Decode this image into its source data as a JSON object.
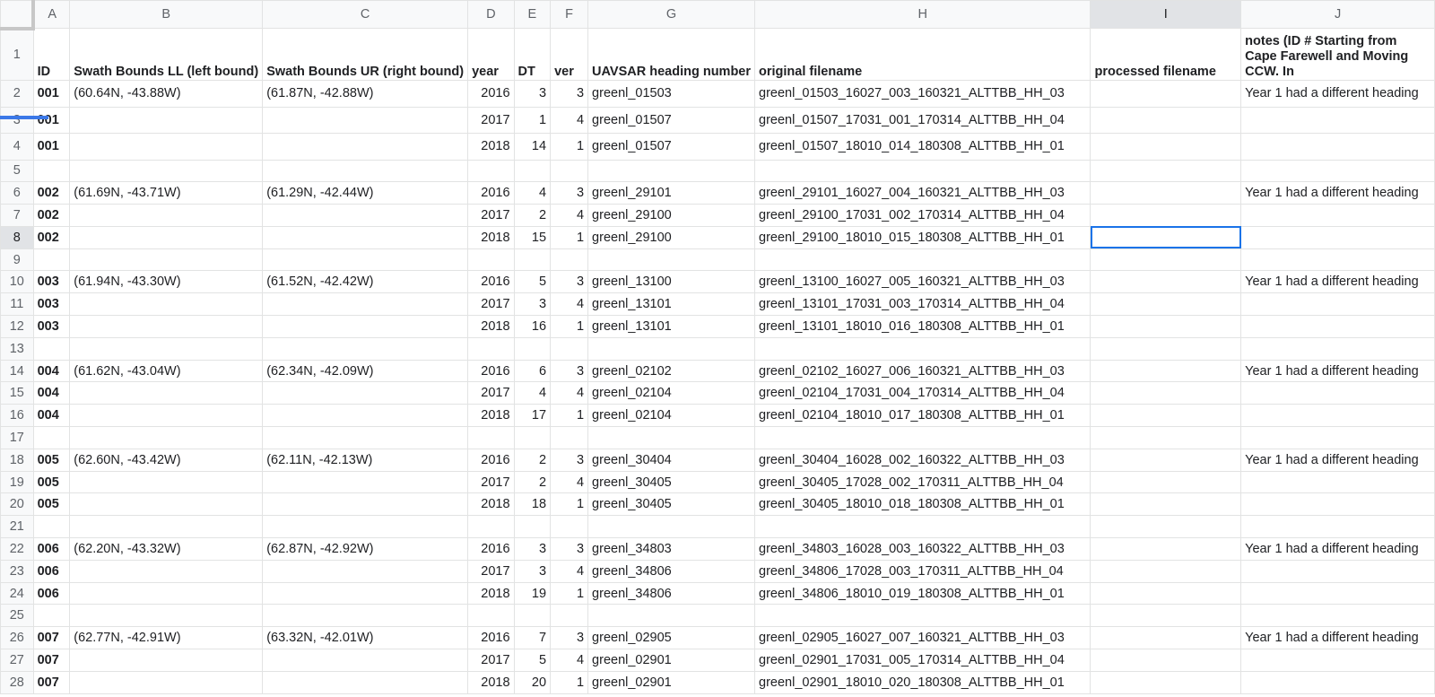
{
  "columns": [
    "A",
    "B",
    "C",
    "D",
    "E",
    "F",
    "G",
    "H",
    "I",
    "J"
  ],
  "selected": {
    "column": "I",
    "row": "8"
  },
  "header_row": {
    "num": "1",
    "cells": [
      "ID",
      "Swath Bounds LL (left bound)",
      "Swath Bounds UR (right bound)",
      "year",
      "DT",
      "ver",
      "UAVSAR heading number",
      "original filename",
      "processed filename",
      "notes (ID # Starting from Cape Farewell and Moving CCW. In"
    ]
  },
  "rows": [
    {
      "num": "2",
      "cells": [
        "001",
        "(60.64N, -43.88W)",
        "(61.87N, -42.88W)",
        "2016",
        "3",
        "3",
        "greenl_01503",
        "greenl_01503_16027_003_160321_ALTTBB_HH_03",
        "",
        "Year 1 had a different heading"
      ]
    },
    {
      "num": "3",
      "cells": [
        "001",
        "",
        "",
        "2017",
        "1",
        "4",
        "greenl_01507",
        "greenl_01507_17031_001_170314_ALTTBB_HH_04",
        "",
        ""
      ]
    },
    {
      "num": "4",
      "cells": [
        "001",
        "",
        "",
        "2018",
        "14",
        "1",
        "greenl_01507",
        "greenl_01507_18010_014_180308_ALTTBB_HH_01",
        "",
        ""
      ]
    },
    {
      "num": "5",
      "cells": [
        "",
        "",
        "",
        "",
        "",
        "",
        "",
        "",
        "",
        ""
      ]
    },
    {
      "num": "6",
      "cells": [
        "002",
        "(61.69N, -43.71W)",
        "(61.29N, -42.44W)",
        "2016",
        "4",
        "3",
        "greenl_29101",
        "greenl_29101_16027_004_160321_ALTTBB_HH_03",
        "",
        "Year 1 had a different heading"
      ]
    },
    {
      "num": "7",
      "cells": [
        "002",
        "",
        "",
        "2017",
        "2",
        "4",
        "greenl_29100",
        "greenl_29100_17031_002_170314_ALTTBB_HH_04",
        "",
        ""
      ]
    },
    {
      "num": "8",
      "cells": [
        "002",
        "",
        "",
        "2018",
        "15",
        "1",
        "greenl_29100",
        "greenl_29100_18010_015_180308_ALTTBB_HH_01",
        "",
        ""
      ]
    },
    {
      "num": "9",
      "cells": [
        "",
        "",
        "",
        "",
        "",
        "",
        "",
        "",
        "",
        ""
      ]
    },
    {
      "num": "10",
      "cells": [
        "003",
        "(61.94N, -43.30W)",
        "(61.52N, -42.42W)",
        "2016",
        "5",
        "3",
        "greenl_13100",
        "greenl_13100_16027_005_160321_ALTTBB_HH_03",
        "",
        "Year 1 had a different heading"
      ]
    },
    {
      "num": "11",
      "cells": [
        "003",
        "",
        "",
        "2017",
        "3",
        "4",
        "greenl_13101",
        "greenl_13101_17031_003_170314_ALTTBB_HH_04",
        "",
        ""
      ]
    },
    {
      "num": "12",
      "cells": [
        "003",
        "",
        "",
        "2018",
        "16",
        "1",
        "greenl_13101",
        "greenl_13101_18010_016_180308_ALTTBB_HH_01",
        "",
        ""
      ]
    },
    {
      "num": "13",
      "cells": [
        "",
        "",
        "",
        "",
        "",
        "",
        "",
        "",
        "",
        ""
      ]
    },
    {
      "num": "14",
      "cells": [
        "004",
        "(61.62N, -43.04W)",
        "(62.34N, -42.09W)",
        "2016",
        "6",
        "3",
        "greenl_02102",
        "greenl_02102_16027_006_160321_ALTTBB_HH_03",
        "",
        "Year 1 had a different heading"
      ]
    },
    {
      "num": "15",
      "cells": [
        "004",
        "",
        "",
        "2017",
        "4",
        "4",
        "greenl_02104",
        "greenl_02104_17031_004_170314_ALTTBB_HH_04",
        "",
        ""
      ]
    },
    {
      "num": "16",
      "cells": [
        "004",
        "",
        "",
        "2018",
        "17",
        "1",
        "greenl_02104",
        "greenl_02104_18010_017_180308_ALTTBB_HH_01",
        "",
        ""
      ]
    },
    {
      "num": "17",
      "cells": [
        "",
        "",
        "",
        "",
        "",
        "",
        "",
        "",
        "",
        ""
      ]
    },
    {
      "num": "18",
      "cells": [
        "005",
        "(62.60N, -43.42W)",
        "(62.11N, -42.13W)",
        "2016",
        "2",
        "3",
        "greenl_30404",
        "greenl_30404_16028_002_160322_ALTTBB_HH_03",
        "",
        "Year 1 had a different heading"
      ]
    },
    {
      "num": "19",
      "cells": [
        "005",
        "",
        "",
        "2017",
        "2",
        "4",
        "greenl_30405",
        "greenl_30405_17028_002_170311_ALTTBB_HH_04",
        "",
        ""
      ]
    },
    {
      "num": "20",
      "cells": [
        "005",
        "",
        "",
        "2018",
        "18",
        "1",
        "greenl_30405",
        "greenl_30405_18010_018_180308_ALTTBB_HH_01",
        "",
        ""
      ]
    },
    {
      "num": "21",
      "cells": [
        "",
        "",
        "",
        "",
        "",
        "",
        "",
        "",
        "",
        ""
      ]
    },
    {
      "num": "22",
      "cells": [
        "006",
        "(62.20N, -43.32W)",
        "(62.87N, -42.92W)",
        "2016",
        "3",
        "3",
        "greenl_34803",
        "greenl_34803_16028_003_160322_ALTTBB_HH_03",
        "",
        "Year 1 had a different heading"
      ]
    },
    {
      "num": "23",
      "cells": [
        "006",
        "",
        "",
        "2017",
        "3",
        "4",
        "greenl_34806",
        "greenl_34806_17028_003_170311_ALTTBB_HH_04",
        "",
        ""
      ]
    },
    {
      "num": "24",
      "cells": [
        "006",
        "",
        "",
        "2018",
        "19",
        "1",
        "greenl_34806",
        "greenl_34806_18010_019_180308_ALTTBB_HH_01",
        "",
        ""
      ]
    },
    {
      "num": "25",
      "cells": [
        "",
        "",
        "",
        "",
        "",
        "",
        "",
        "",
        "",
        ""
      ]
    },
    {
      "num": "26",
      "cells": [
        "007",
        "(62.77N, -42.91W)",
        "(63.32N, -42.01W)",
        "2016",
        "7",
        "3",
        "greenl_02905",
        "greenl_02905_16027_007_160321_ALTTBB_HH_03",
        "",
        "Year 1 had a different heading"
      ]
    },
    {
      "num": "27",
      "cells": [
        "007",
        "",
        "",
        "2017",
        "5",
        "4",
        "greenl_02901",
        "greenl_02901_17031_005_170314_ALTTBB_HH_04",
        "",
        ""
      ]
    },
    {
      "num": "28",
      "cells": [
        "007",
        "",
        "",
        "2018",
        "20",
        "1",
        "greenl_02901",
        "greenl_02901_18010_020_180308_ALTTBB_HH_01",
        "",
        ""
      ]
    }
  ]
}
